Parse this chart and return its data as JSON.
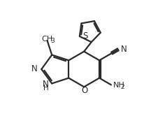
{
  "bg_color": "#ffffff",
  "line_color": "#2a2a2a",
  "line_width": 1.6,
  "fig_width": 2.16,
  "fig_height": 1.96,
  "dpi": 100,
  "xlim": [
    0,
    10
  ],
  "ylim": [
    0,
    10
  ]
}
